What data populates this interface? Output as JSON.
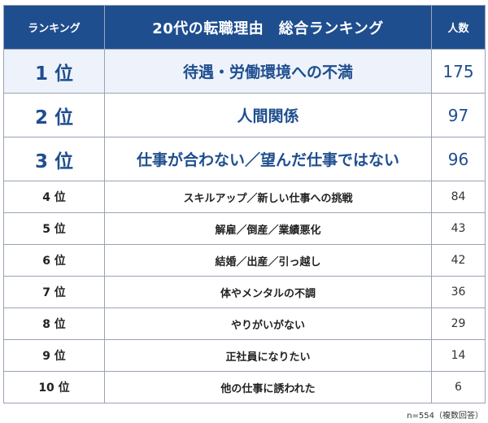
{
  "header": {
    "rank_label": "ランキング",
    "title": "20代の転職理由　総合ランキング",
    "count_label": "人数"
  },
  "rows": [
    {
      "rank": "1 位",
      "reason": "待遇・労働環境への不満",
      "count": "175"
    },
    {
      "rank": "2 位",
      "reason": "人間関係",
      "count": "97"
    },
    {
      "rank": "3 位",
      "reason": "仕事が合わない／望んだ仕事ではない",
      "count": "96"
    },
    {
      "rank": "4 位",
      "reason": "スキルアップ／新しい仕事への挑戦",
      "count": "84"
    },
    {
      "rank": "5 位",
      "reason": "解雇／倒産／業績悪化",
      "count": "43"
    },
    {
      "rank": "6 位",
      "reason": "結婚／出産／引っ越し",
      "count": "42"
    },
    {
      "rank": "7 位",
      "reason": "体やメンタルの不調",
      "count": "36"
    },
    {
      "rank": "8 位",
      "reason": "やりがいがない",
      "count": "29"
    },
    {
      "rank": "9 位",
      "reason": "正社員になりたい",
      "count": "14"
    },
    {
      "rank": "10 位",
      "reason": "他の仕事に誘われた",
      "count": "6"
    }
  ],
  "footnote": "n=554（複数回答）",
  "colors": {
    "header_bg": "#1f4e8f",
    "top_rank_text": "#1f4e8f",
    "top_row_bg": "#eef3fb",
    "border": "#9aa3b3"
  }
}
